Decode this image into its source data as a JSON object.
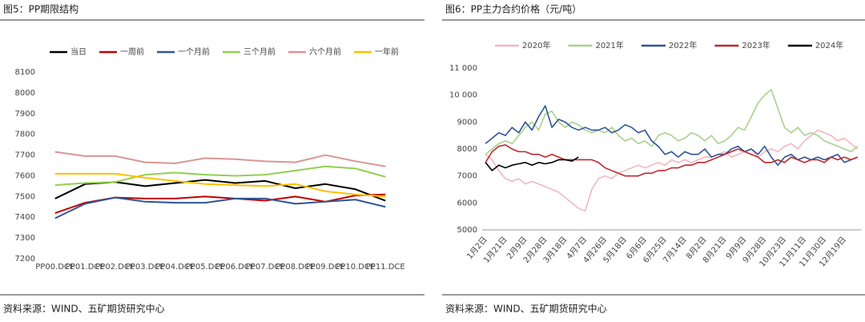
{
  "chart_data": [
    {
      "type": "line",
      "title": "图5：PP期限结构",
      "source": "资料来源：WIND、五矿期货研究中心",
      "legend": "top",
      "grid": false,
      "categories": [
        "PP00.DCE",
        "PP01.DCE",
        "PP02.DCE",
        "PP03.DCE",
        "PP04.DCE",
        "PP05.DCE",
        "PP06.DCE",
        "PP07.DCE",
        "PP08.DCE",
        "PP09.DCE",
        "PP10.DCE",
        "PP11.DCE"
      ],
      "ylim": [
        7200,
        8100
      ],
      "yticks": [
        7200,
        7300,
        7400,
        7500,
        7600,
        7700,
        7800,
        7900,
        8000,
        8100
      ],
      "series": [
        {
          "name": "当日",
          "color": "#000000",
          "values": [
            7490,
            7560,
            7570,
            7550,
            7565,
            7580,
            7565,
            7575,
            7540,
            7560,
            7535,
            7480
          ]
        },
        {
          "name": "一周前",
          "color": "#c00000",
          "values": [
            7420,
            7470,
            7495,
            7490,
            7490,
            7500,
            7490,
            7480,
            7500,
            7475,
            7505,
            7510
          ]
        },
        {
          "name": "一个月前",
          "color": "#2f5597",
          "values": [
            7395,
            7465,
            7495,
            7475,
            7470,
            7470,
            7490,
            7490,
            7465,
            7475,
            7485,
            7450
          ]
        },
        {
          "name": "三个月前",
          "color": "#92d050",
          "values": [
            7555,
            7565,
            7570,
            7605,
            7615,
            7605,
            7600,
            7605,
            7625,
            7645,
            7635,
            7595
          ]
        },
        {
          "name": "六个月前",
          "color": "#d99694",
          "values": [
            7715,
            7695,
            7695,
            7665,
            7660,
            7685,
            7680,
            7670,
            7665,
            7700,
            7670,
            7645
          ]
        },
        {
          "name": "一年前",
          "color": "#ffc000",
          "values": [
            7610,
            7610,
            7610,
            7590,
            7575,
            7560,
            7555,
            7550,
            7560,
            7525,
            7510,
            7500
          ]
        }
      ]
    },
    {
      "type": "line",
      "title": "图6：PP主力合约价格（元/吨）",
      "source": "资料来源：WIND、五矿期货研究中心",
      "legend": "top",
      "grid": false,
      "categories": [
        "1月2日",
        null,
        null,
        "1月21日",
        null,
        null,
        "2月9日",
        null,
        null,
        "2月28日",
        null,
        null,
        "3月18日",
        null,
        null,
        "4月7日",
        null,
        null,
        "4月26日",
        null,
        null,
        "5月18日",
        null,
        null,
        "6月6日",
        null,
        null,
        "6月25日",
        null,
        null,
        "7月14日",
        null,
        null,
        "8月2日",
        null,
        null,
        "8月21日",
        null,
        null,
        "9月9日",
        null,
        null,
        "9月28日",
        null,
        null,
        "10月23日",
        null,
        null,
        "11月11日",
        null,
        null,
        "11月30日",
        null,
        null,
        "12月19日",
        null,
        null
      ],
      "ylim": [
        5000,
        11000
      ],
      "yticks": [
        5000,
        6000,
        7000,
        8000,
        9000,
        {
          "value": 10000,
          "label": "10 000"
        },
        {
          "value": 11000,
          "label": "11 000"
        }
      ],
      "series": [
        {
          "name": "2020年",
          "color": "#f4b6c2",
          "values": [
            7800,
            7600,
            7200,
            6900,
            6800,
            6900,
            6700,
            6800,
            6700,
            6600,
            6500,
            6400,
            6200,
            6000,
            5800,
            5700,
            6500,
            6900,
            7000,
            6900,
            7100,
            7200,
            7300,
            7400,
            7300,
            7400,
            7500,
            7400,
            7600,
            7500,
            7600,
            7500,
            7600,
            7700,
            7700,
            7800,
            7900,
            7700,
            7800,
            7900,
            8000,
            7700,
            7900,
            8000,
            7900,
            8100,
            8200,
            8000,
            8300,
            8500,
            8700,
            8600,
            8500,
            8300,
            8400,
            8200,
            8000
          ]
        },
        {
          "name": "2021年",
          "color": "#a9d18e",
          "values": [
            7800,
            8000,
            8200,
            8300,
            8200,
            8500,
            8800,
            9000,
            8700,
            9300,
            9400,
            9000,
            8800,
            9000,
            8900,
            8700,
            8600,
            8700,
            8600,
            8800,
            8500,
            8300,
            8400,
            8200,
            8300,
            8100,
            8500,
            8600,
            8500,
            8300,
            8400,
            8600,
            8500,
            8300,
            8500,
            8200,
            8300,
            8500,
            8800,
            8700,
            9200,
            9700,
            10000,
            10200,
            9500,
            8800,
            8600,
            8800,
            8500,
            8600,
            8500,
            8300,
            8200,
            8100,
            8000,
            7900,
            8100
          ]
        },
        {
          "name": "2022年",
          "color": "#2f5597",
          "values": [
            8200,
            8400,
            8600,
            8500,
            8800,
            8600,
            9000,
            8700,
            9200,
            9600,
            8800,
            9100,
            9000,
            8800,
            8700,
            8800,
            8700,
            8700,
            8800,
            8600,
            8700,
            8900,
            8800,
            8600,
            8700,
            8300,
            8100,
            7800,
            7900,
            7700,
            7900,
            7800,
            7800,
            8000,
            7700,
            7800,
            7800,
            8000,
            8100,
            7900,
            8000,
            7800,
            8100,
            7700,
            7400,
            7700,
            7800,
            7600,
            7700,
            7600,
            7700,
            7600,
            7700,
            7800,
            7500,
            7600,
            7700
          ]
        },
        {
          "name": "2023年",
          "color": "#c0282d",
          "values": [
            7500,
            7900,
            8100,
            8150,
            8000,
            7900,
            7900,
            7800,
            7800,
            7700,
            7800,
            7700,
            7600,
            7600,
            7600,
            7600,
            7600,
            7500,
            7300,
            7200,
            7100,
            7000,
            7000,
            7000,
            7100,
            7100,
            7200,
            7200,
            7300,
            7300,
            7400,
            7400,
            7500,
            7500,
            7600,
            7700,
            7800,
            7900,
            8000,
            7900,
            7800,
            7700,
            7500,
            7500,
            7600,
            7500,
            7700,
            7600,
            7500,
            7600,
            7600,
            7500,
            7700,
            7600,
            7700,
            7600,
            7700
          ]
        },
        {
          "name": "2024年",
          "color": "#000000",
          "values": [
            7500,
            7200,
            7400,
            7300,
            7400,
            7450,
            7500,
            7400,
            7500,
            7450,
            7500,
            7600,
            7600,
            7550,
            7700,
            null,
            null,
            null,
            null,
            null,
            null,
            null,
            null,
            null,
            null,
            null,
            null,
            null,
            null,
            null,
            null,
            null,
            null,
            null,
            null,
            null,
            null,
            null,
            null,
            null,
            null,
            null,
            null,
            null,
            null,
            null,
            null,
            null,
            null,
            null,
            null,
            null,
            null,
            null,
            null,
            null,
            null
          ]
        }
      ]
    }
  ]
}
